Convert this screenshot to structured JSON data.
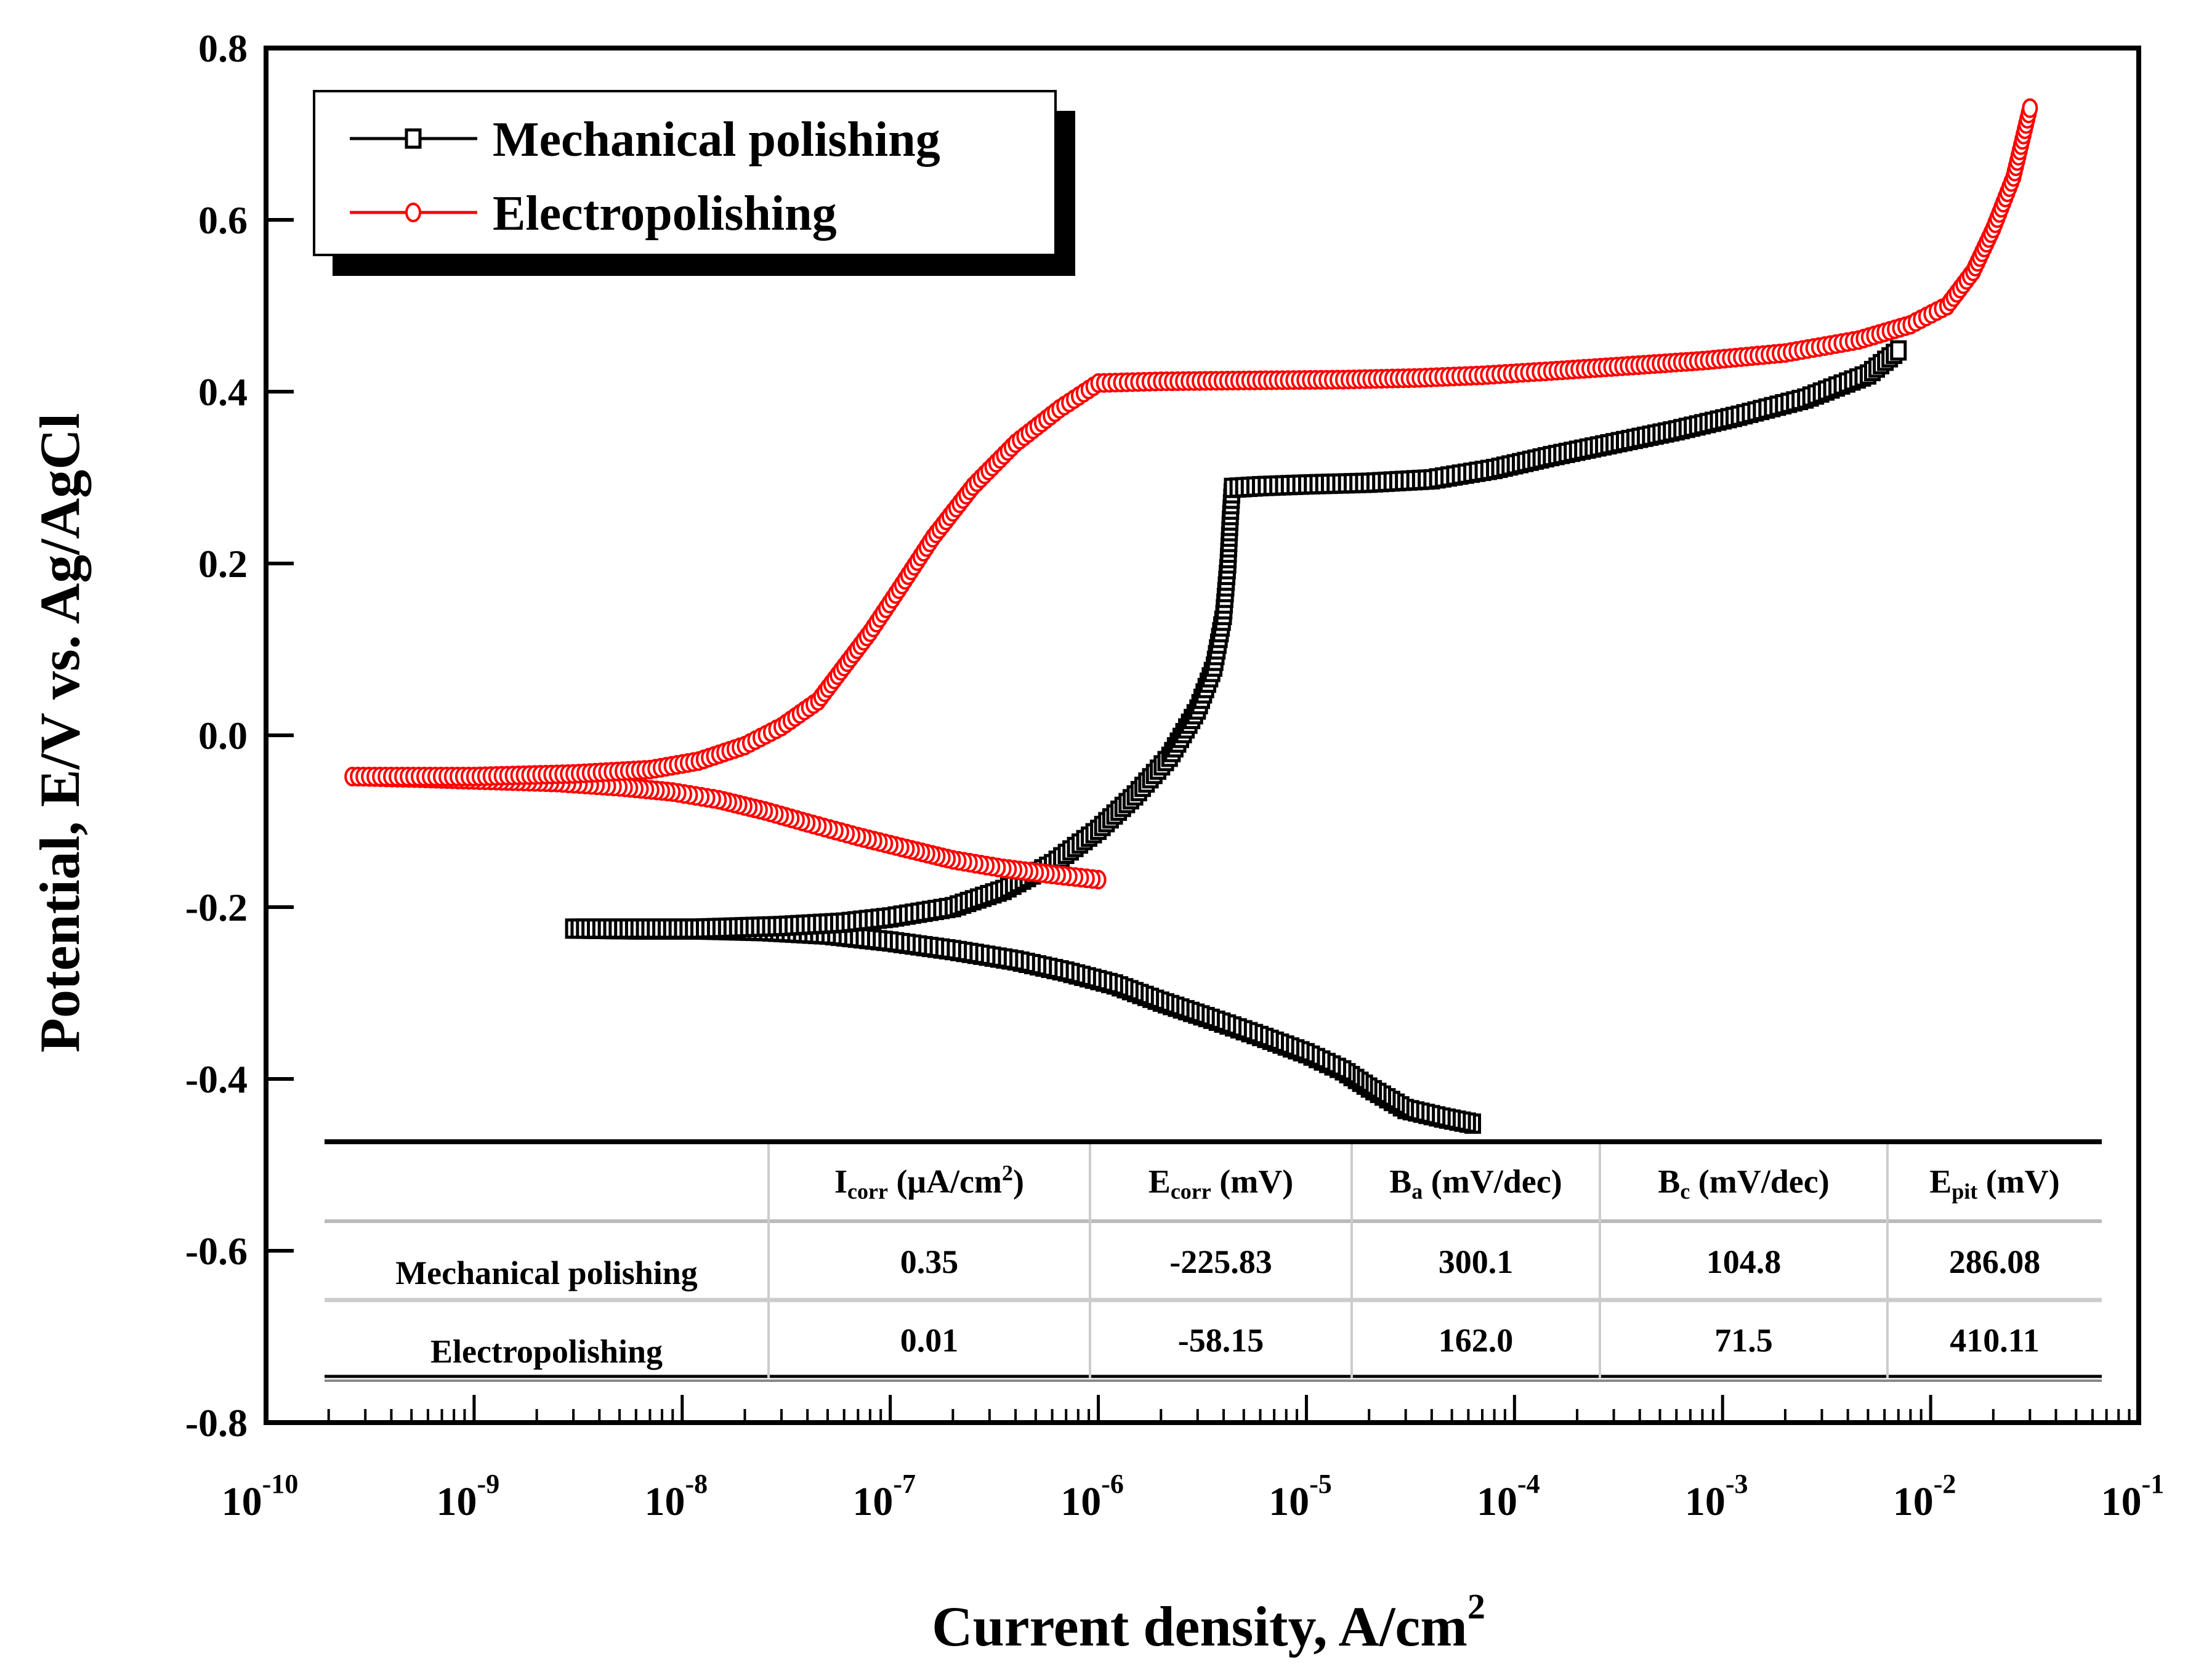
{
  "chart_data": {
    "type": "scatter",
    "title": "",
    "xlabel": "Current density, A/cm",
    "xlabel_sup": "2",
    "ylabel": "Potential, E/V vs. Ag/AgCl",
    "xscale": "log",
    "xlim": [
      1e-10,
      0.1
    ],
    "ylim": [
      -0.8,
      0.8
    ],
    "x_ticks": [
      {
        "base": "10",
        "exp": "-10",
        "value": 1e-10
      },
      {
        "base": "10",
        "exp": "-9",
        "value": 1e-09
      },
      {
        "base": "10",
        "exp": "-8",
        "value": 1e-08
      },
      {
        "base": "10",
        "exp": "-7",
        "value": 1e-07
      },
      {
        "base": "10",
        "exp": "-6",
        "value": 1e-06
      },
      {
        "base": "10",
        "exp": "-5",
        "value": 1e-05
      },
      {
        "base": "10",
        "exp": "-4",
        "value": 0.0001
      },
      {
        "base": "10",
        "exp": "-3",
        "value": 0.001
      },
      {
        "base": "10",
        "exp": "-2",
        "value": 0.01
      },
      {
        "base": "10",
        "exp": "-1",
        "value": 0.1
      }
    ],
    "y_ticks": [
      "0.8",
      "0.6",
      "0.4",
      "0.2",
      "0.0",
      "-0.2",
      "-0.4",
      "-0.6",
      "-0.8"
    ],
    "grid": false,
    "legend_position": "upper-left",
    "series": [
      {
        "name": "Mechanical polishing",
        "color": "#000000",
        "marker": "square-open",
        "points": [
          [
            6.3e-05,
            -0.452
          ],
          [
            4.5e-05,
            -0.445
          ],
          [
            3e-05,
            -0.435
          ],
          [
            2e-05,
            -0.41
          ],
          [
            1.5e-05,
            -0.39
          ],
          [
            1e-05,
            -0.37
          ],
          [
            6e-06,
            -0.35
          ],
          [
            3.5e-06,
            -0.33
          ],
          [
            2e-06,
            -0.31
          ],
          [
            1.2e-06,
            -0.29
          ],
          [
            7e-07,
            -0.275
          ],
          [
            4e-07,
            -0.262
          ],
          [
            2e-07,
            -0.25
          ],
          [
            1e-07,
            -0.24
          ],
          [
            5e-08,
            -0.232
          ],
          [
            2.5e-08,
            -0.228
          ],
          [
            1.2e-08,
            -0.226
          ],
          [
            6e-09,
            -0.226
          ],
          [
            3e-09,
            -0.225
          ],
          [
            1.2e-08,
            -0.225
          ],
          [
            3e-08,
            -0.222
          ],
          [
            6e-08,
            -0.218
          ],
          [
            1e-07,
            -0.212
          ],
          [
            2e-07,
            -0.2
          ],
          [
            3.5e-07,
            -0.18
          ],
          [
            6e-07,
            -0.15
          ],
          [
            1e-06,
            -0.11
          ],
          [
            1.5e-06,
            -0.07
          ],
          [
            2.2e-06,
            -0.025
          ],
          [
            3e-06,
            0.03
          ],
          [
            3.6e-06,
            0.08
          ],
          [
            4e-06,
            0.14
          ],
          [
            4.2e-06,
            0.2
          ],
          [
            4.3e-06,
            0.25
          ],
          [
            4.4e-06,
            0.288
          ],
          [
            6e-06,
            0.29
          ],
          [
            1e-05,
            0.292
          ],
          [
            2e-05,
            0.294
          ],
          [
            4e-05,
            0.298
          ],
          [
            8e-05,
            0.31
          ],
          [
            0.00015,
            0.325
          ],
          [
            0.0003,
            0.34
          ],
          [
            0.0006,
            0.355
          ],
          [
            0.0012,
            0.372
          ],
          [
            0.0025,
            0.392
          ],
          [
            0.005,
            0.42
          ],
          [
            0.007,
            0.448
          ]
        ]
      },
      {
        "name": "Electropolishing",
        "color": "#ff0000",
        "marker": "circle-open",
        "points": [
          [
            1e-06,
            -0.168
          ],
          [
            6e-07,
            -0.162
          ],
          [
            3.5e-07,
            -0.155
          ],
          [
            2e-07,
            -0.145
          ],
          [
            1.2e-07,
            -0.132
          ],
          [
            7e-08,
            -0.118
          ],
          [
            4e-08,
            -0.102
          ],
          [
            2.5e-08,
            -0.088
          ],
          [
            1.5e-08,
            -0.075
          ],
          [
            9e-09,
            -0.066
          ],
          [
            5e-09,
            -0.06
          ],
          [
            2.5e-09,
            -0.055
          ],
          [
            1e-09,
            -0.052
          ],
          [
            5.5e-10,
            -0.05
          ],
          [
            2.6e-10,
            -0.048
          ],
          [
            1e-09,
            -0.048
          ],
          [
            3e-09,
            -0.045
          ],
          [
            7e-09,
            -0.04
          ],
          [
            1.2e-08,
            -0.03
          ],
          [
            2e-08,
            -0.012
          ],
          [
            3e-08,
            0.01
          ],
          [
            4.5e-08,
            0.04
          ],
          [
            6e-08,
            0.08
          ],
          [
            8e-08,
            0.12
          ],
          [
            1.1e-07,
            0.17
          ],
          [
            1.6e-07,
            0.23
          ],
          [
            2.5e-07,
            0.29
          ],
          [
            4e-07,
            0.34
          ],
          [
            6.5e-07,
            0.38
          ],
          [
            1e-06,
            0.41
          ],
          [
            2e-06,
            0.412
          ],
          [
            5e-06,
            0.413
          ],
          [
            1.5e-05,
            0.414
          ],
          [
            3.5e-05,
            0.416
          ],
          [
            7e-05,
            0.419
          ],
          [
            0.00015,
            0.424
          ],
          [
            0.00035,
            0.43
          ],
          [
            0.0008,
            0.436
          ],
          [
            0.002,
            0.445
          ],
          [
            0.0045,
            0.46
          ],
          [
            0.008,
            0.478
          ],
          [
            0.012,
            0.5
          ],
          [
            0.016,
            0.54
          ],
          [
            0.02,
            0.59
          ],
          [
            0.025,
            0.65
          ],
          [
            0.03,
            0.73
          ]
        ]
      }
    ],
    "table": {
      "columns": [
        "",
        "I_corr (μA/cm²)",
        "E_corr (mV)",
        "B_a (mV/dec)",
        "B_c (mV/dec)",
        "E_pit (mV)"
      ],
      "rows": [
        {
          "label": "Mechanical polishing",
          "Icorr": "0.35",
          "Ecorr": "-225.83",
          "Ba": "300.1",
          "Bc": "104.8",
          "Epit": "286.08"
        },
        {
          "label": "Electropolishing",
          "Icorr": "0.01",
          "Ecorr": "-58.15",
          "Ba": "162.0",
          "Bc": "71.5",
          "Epit": "410.11"
        }
      ]
    }
  },
  "legend": {
    "items": [
      {
        "label": "Mechanical polishing",
        "color": "#000000"
      },
      {
        "label": "Electropolishing",
        "color": "#ff0000"
      }
    ]
  },
  "table": {
    "headers": [
      {
        "main": "I",
        "sub": "corr",
        "rest": " (μA/cm",
        "sup": "2",
        "tail": ")"
      },
      {
        "main": "E",
        "sub": "corr",
        "rest": " (mV)",
        "sup": "",
        "tail": ""
      },
      {
        "main": "B",
        "sub": "a",
        "rest": " (mV/dec)",
        "sup": "",
        "tail": ""
      },
      {
        "main": "B",
        "sub": "c",
        "rest": " (mV/dec)",
        "sup": "",
        "tail": ""
      },
      {
        "main": "E",
        "sub": "pit",
        "rest": " (mV)",
        "sup": "",
        "tail": ""
      }
    ],
    "rows": [
      {
        "label": "Mechanical polishing",
        "cells": [
          "0.35",
          "-225.83",
          "300.1",
          "104.8",
          "286.08"
        ]
      },
      {
        "label": "Electropolishing",
        "cells": [
          "0.01",
          "-58.15",
          "162.0",
          "71.5",
          "410.11"
        ]
      }
    ]
  }
}
